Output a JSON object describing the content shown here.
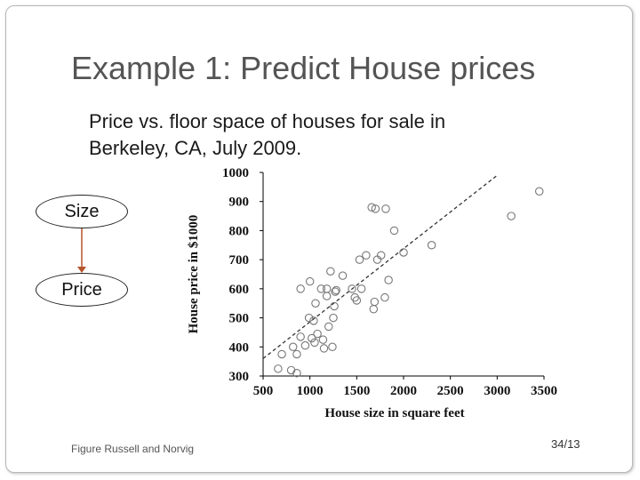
{
  "slide": {
    "title": "Example 1: Predict House prices",
    "bullet_mark": "",
    "bullet_line1": "Price vs. floor space of houses for sale in",
    "bullet_line2": "Berkeley, CA, July 2009.",
    "caption": "Figure Russell and Norvig",
    "page_number": "34/13"
  },
  "diagram": {
    "nodes": [
      "Size",
      "Price"
    ],
    "edge_color": "#b5532c"
  },
  "chart_data": {
    "type": "scatter",
    "xlabel": "House size in square feet",
    "ylabel": "House price in $1000",
    "xlim": [
      500,
      3500
    ],
    "ylim": [
      300,
      1000
    ],
    "xticks": [
      "500",
      "1000",
      "1500",
      "2000",
      "2500",
      "3000",
      "3500"
    ],
    "yticks": [
      "300",
      "400",
      "500",
      "600",
      "700",
      "800",
      "900",
      "1000"
    ],
    "fit_line": {
      "style": "dashed",
      "from": [
        500,
        360
      ],
      "to": [
        3000,
        990
      ]
    },
    "points": [
      [
        660,
        325
      ],
      [
        700,
        375
      ],
      [
        800,
        320
      ],
      [
        820,
        400
      ],
      [
        860,
        375
      ],
      [
        860,
        310
      ],
      [
        900,
        435
      ],
      [
        900,
        600
      ],
      [
        950,
        405
      ],
      [
        990,
        500
      ],
      [
        1000,
        625
      ],
      [
        1020,
        430
      ],
      [
        1040,
        490
      ],
      [
        1050,
        415
      ],
      [
        1060,
        550
      ],
      [
        1080,
        445
      ],
      [
        1120,
        600
      ],
      [
        1140,
        425
      ],
      [
        1150,
        395
      ],
      [
        1180,
        575
      ],
      [
        1180,
        600
      ],
      [
        1200,
        470
      ],
      [
        1220,
        660
      ],
      [
        1240,
        400
      ],
      [
        1250,
        500
      ],
      [
        1260,
        540
      ],
      [
        1270,
        590
      ],
      [
        1280,
        595
      ],
      [
        1350,
        645
      ],
      [
        1450,
        600
      ],
      [
        1480,
        570
      ],
      [
        1500,
        560
      ],
      [
        1530,
        700
      ],
      [
        1550,
        600
      ],
      [
        1600,
        715
      ],
      [
        1660,
        880
      ],
      [
        1680,
        530
      ],
      [
        1690,
        555
      ],
      [
        1700,
        875
      ],
      [
        1720,
        700
      ],
      [
        1760,
        715
      ],
      [
        1800,
        570
      ],
      [
        1810,
        875
      ],
      [
        1840,
        630
      ],
      [
        1900,
        800
      ],
      [
        2000,
        725
      ],
      [
        2300,
        750
      ],
      [
        3150,
        850
      ],
      [
        3450,
        935
      ]
    ]
  }
}
